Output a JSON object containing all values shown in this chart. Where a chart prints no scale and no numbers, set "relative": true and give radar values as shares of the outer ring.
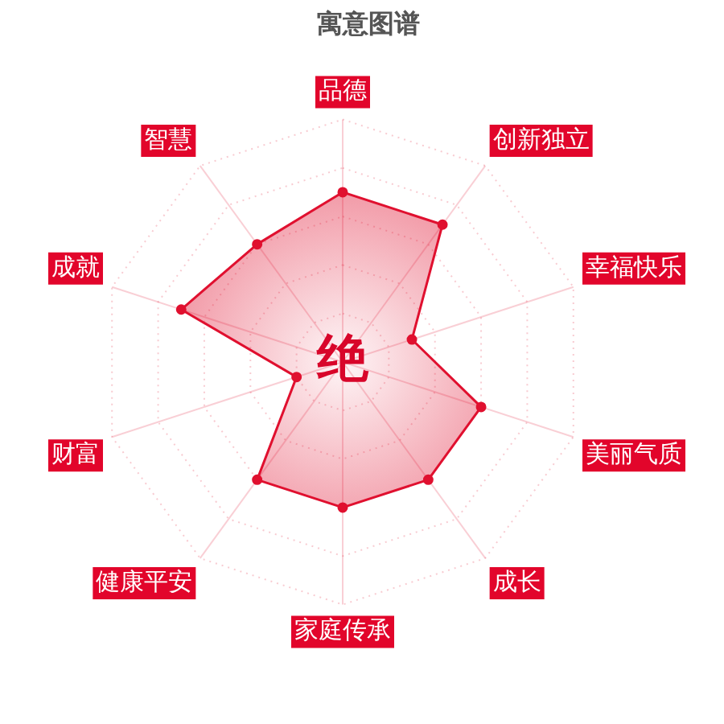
{
  "chart_data": {
    "type": "radar",
    "title": "寓意图谱",
    "categories": [
      "品德",
      "创新独立",
      "幸福快乐",
      "美丽气质",
      "成长",
      "家庭传承",
      "健康平安",
      "财富",
      "成就",
      "智慧"
    ],
    "series": [
      {
        "color": "#e0102f",
        "values": [
          0.7,
          0.7,
          0.3,
          0.6,
          0.6,
          0.6,
          0.6,
          0.2,
          0.7,
          0.6
        ]
      }
    ],
    "relative": true,
    "grid": true,
    "marker": "circle",
    "line_style": "solid",
    "legend": false,
    "annotations": [
      "绝"
    ]
  }
}
